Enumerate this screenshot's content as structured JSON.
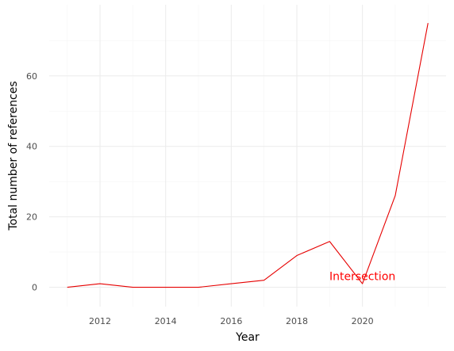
{
  "chart_data": {
    "type": "line",
    "title": "",
    "xlabel": "Year",
    "ylabel": "Total number of references",
    "x": [
      2011,
      2012,
      2013,
      2014,
      2015,
      2016,
      2017,
      2018,
      2019,
      2020,
      2021,
      2022
    ],
    "series": [
      {
        "values": [
          0,
          1,
          0,
          0,
          0,
          1,
          2,
          9,
          13,
          1,
          26,
          75
        ],
        "color": "#e60000"
      }
    ],
    "x_ticks": [
      2012,
      2014,
      2016,
      2018,
      2020
    ],
    "y_ticks": [
      0,
      20,
      40,
      60
    ],
    "xlim": [
      2010.45,
      2022.55
    ],
    "ylim": [
      -5.5,
      80.2
    ],
    "grid": true,
    "annotations": [
      {
        "text": "Intersection",
        "x": 2020,
        "y": 3.2,
        "color": "#ff0000"
      }
    ]
  }
}
